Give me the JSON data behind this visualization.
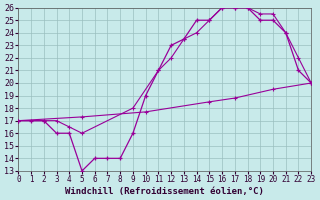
{
  "xlabel": "Windchill (Refroidissement éolien,°C)",
  "xlim": [
    0,
    23
  ],
  "ylim": [
    13,
    26
  ],
  "xticks": [
    0,
    1,
    2,
    3,
    4,
    5,
    6,
    7,
    8,
    9,
    10,
    11,
    12,
    13,
    14,
    15,
    16,
    17,
    18,
    19,
    20,
    21,
    22,
    23
  ],
  "yticks": [
    13,
    14,
    15,
    16,
    17,
    18,
    19,
    20,
    21,
    22,
    23,
    24,
    25,
    26
  ],
  "bg_color": "#c8eaea",
  "grid_color": "#9bbfbf",
  "line_color": "#990099",
  "line1_x": [
    0,
    1,
    2,
    3,
    4,
    5,
    6,
    7,
    8,
    9,
    10,
    11,
    12,
    13,
    14,
    15,
    16,
    17,
    18,
    19,
    20,
    21,
    22,
    23
  ],
  "line1_y": [
    17,
    17,
    17,
    16,
    16,
    13,
    14,
    14,
    14,
    16,
    19,
    21,
    23,
    23.5,
    25,
    25,
    26,
    26,
    26,
    25,
    25,
    24,
    21,
    20
  ],
  "line2_x": [
    0,
    5,
    10,
    15,
    17,
    20,
    23
  ],
  "line2_y": [
    17,
    17.3,
    17.7,
    18.5,
    18.8,
    19.5,
    20
  ],
  "line3_x": [
    0,
    2,
    3,
    4,
    5,
    9,
    11,
    12,
    13,
    14,
    15,
    16,
    17,
    18,
    19,
    20,
    21,
    22,
    23
  ],
  "line3_y": [
    17,
    17,
    17,
    16.5,
    16,
    18,
    21,
    22,
    23.5,
    24,
    25,
    26,
    26,
    26,
    25.5,
    25.5,
    24,
    22,
    20
  ],
  "fontsize_axis": 6.5,
  "fontsize_tick": 5.5
}
